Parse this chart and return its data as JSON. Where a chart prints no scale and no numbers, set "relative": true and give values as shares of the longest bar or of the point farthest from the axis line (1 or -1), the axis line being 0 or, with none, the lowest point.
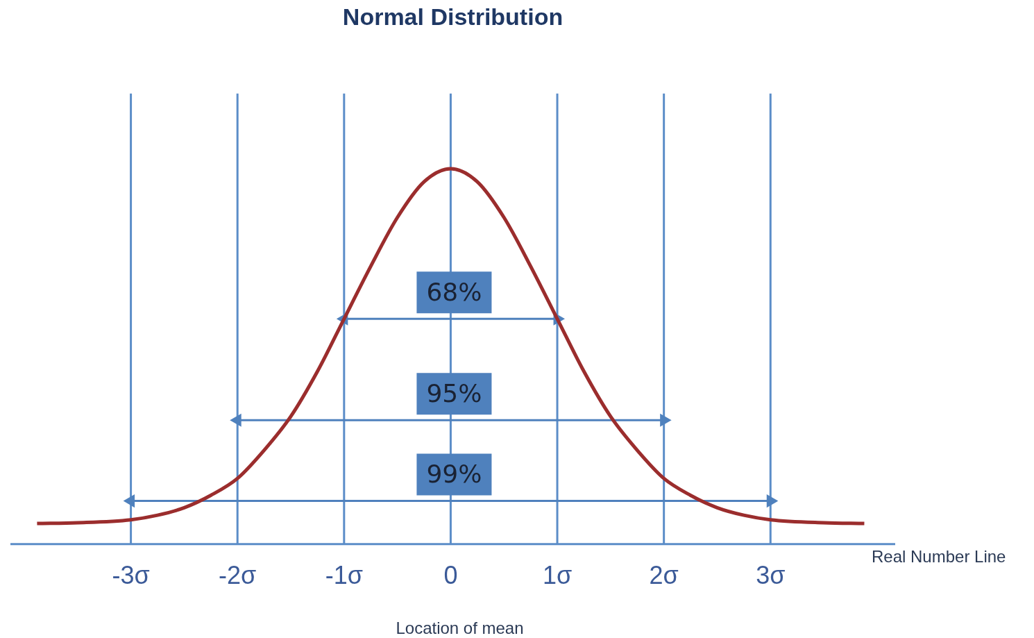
{
  "chart_data": {
    "type": "line",
    "title": "Normal Distribution",
    "xlabel": "Real Number Line",
    "relative": true,
    "x": [
      -3.88,
      -3.5,
      -3,
      -2.75,
      -2.5,
      -2.25,
      -2,
      -1.75,
      -1.5,
      -1.25,
      -1,
      -0.75,
      -0.5,
      -0.25,
      0,
      0.25,
      0.5,
      0.75,
      1,
      1.25,
      1.5,
      1.75,
      2,
      2.25,
      2.5,
      2.75,
      3,
      3.5,
      3.88
    ],
    "series": [
      {
        "color": "#9b2d2d",
        "values": [
          0.055,
          0.057,
          0.065,
          0.077,
          0.097,
          0.13,
          0.175,
          0.25,
          0.34,
          0.46,
          0.6,
          0.74,
          0.87,
          0.965,
          1,
          0.965,
          0.87,
          0.74,
          0.6,
          0.46,
          0.34,
          0.25,
          0.175,
          0.13,
          0.097,
          0.077,
          0.065,
          0.057,
          0.055
        ]
      },
      {
        "type": "line",
        "color": "#4f81bd",
        "x": [
          -1,
          1
        ],
        "values": [
          0.6,
          0.6
        ],
        "marker": "triangle"
      },
      {
        "type": "line",
        "color": "#4f81bd",
        "x": [
          -2,
          2
        ],
        "values": [
          0.33,
          0.33
        ],
        "marker": "triangle"
      },
      {
        "type": "line",
        "color": "#4f81bd",
        "x": [
          -3,
          3
        ],
        "values": [
          0.115,
          0.115
        ],
        "marker": "triangle"
      }
    ],
    "xlim": [
      -4.13,
      4.17
    ],
    "xticks": [
      {
        "value": -3,
        "label": "-3σ"
      },
      {
        "value": -2,
        "label": "-2σ"
      },
      {
        "value": -1,
        "label": "-1σ"
      },
      0,
      {
        "value": 1,
        "label": "1σ"
      },
      {
        "value": 2,
        "label": "2σ"
      },
      {
        "value": 3,
        "label": "3σ"
      }
    ],
    "ref_lines": [
      {
        "axis": "y",
        "value": 0,
        "color": "#5b8dc8"
      },
      {
        "axis": "x",
        "value": -3,
        "color": "#5b8dc8"
      },
      {
        "axis": "x",
        "value": -2,
        "color": "#5b8dc8"
      },
      {
        "axis": "x",
        "value": -1,
        "color": "#5b8dc8"
      },
      {
        "axis": "x",
        "value": 0,
        "color": "#5b8dc8"
      },
      {
        "axis": "x",
        "value": 1,
        "color": "#5b8dc8"
      },
      {
        "axis": "x",
        "value": 2,
        "color": "#5b8dc8"
      },
      {
        "axis": "x",
        "value": 3,
        "color": "#5b8dc8"
      }
    ],
    "marker": "none",
    "line_style": "solid",
    "legend": false,
    "tick_labels": "x",
    "annotations": [
      "68%",
      "95%",
      "99%",
      "Location of mean"
    ]
  }
}
